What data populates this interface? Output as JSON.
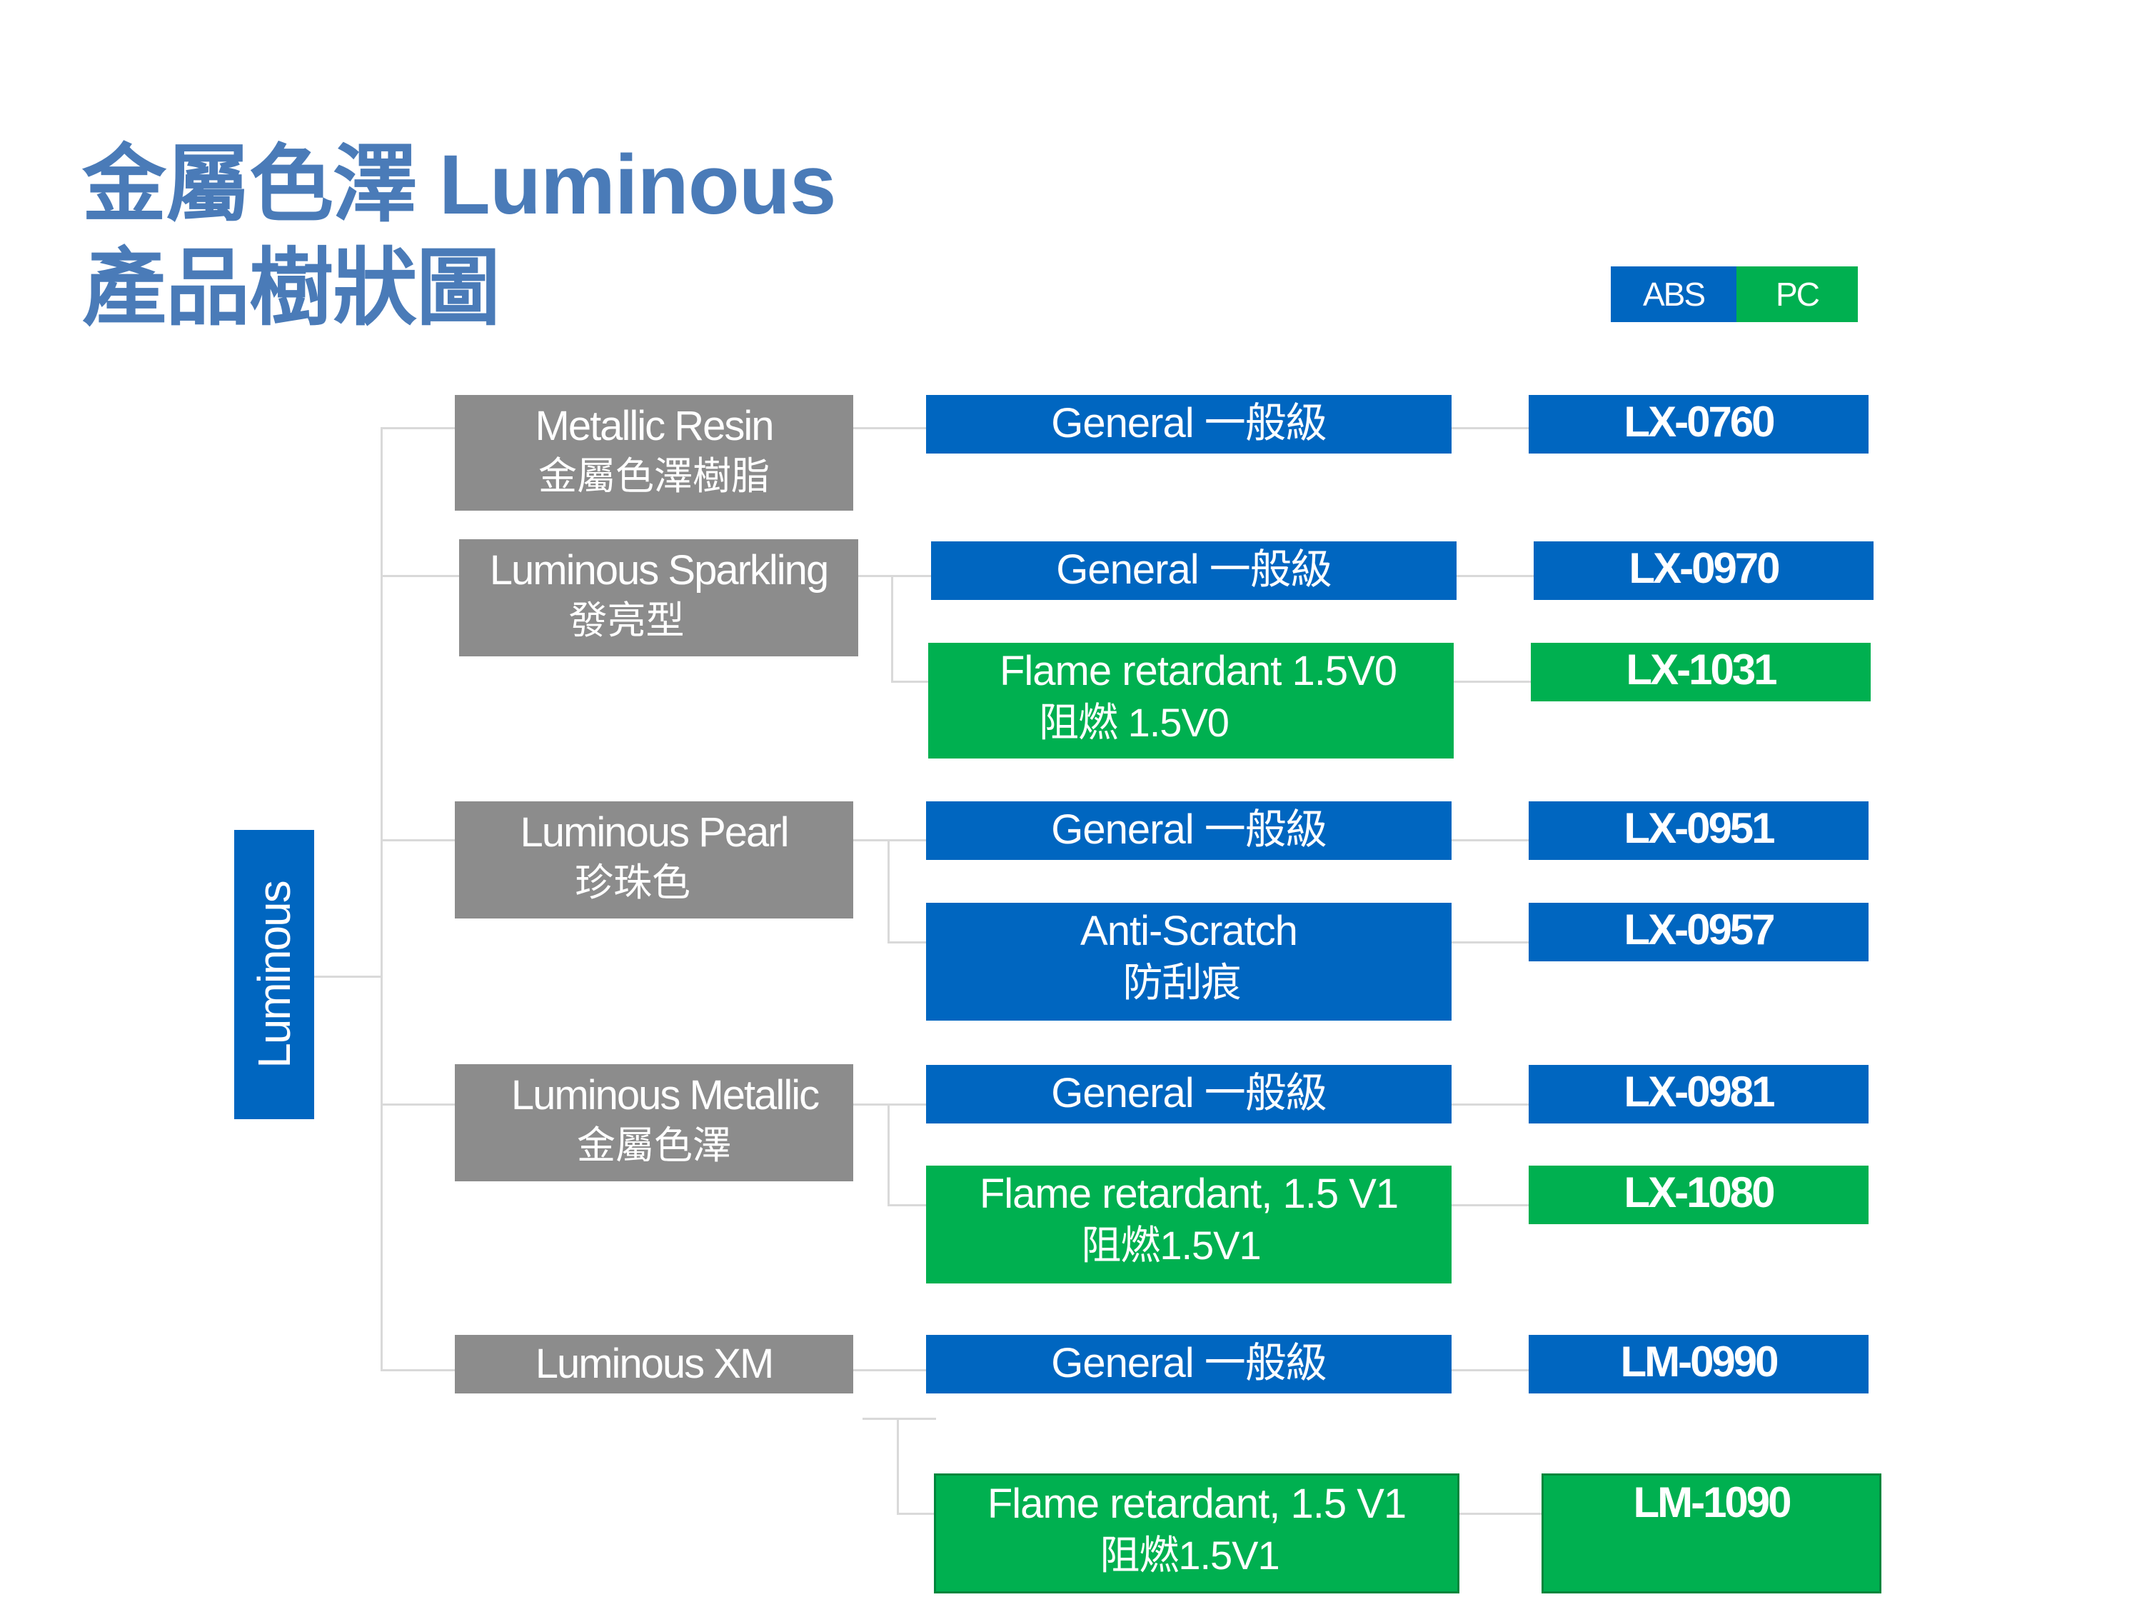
{
  "title": {
    "line1": "金屬色澤 Luminous",
    "line2": "產品樹狀圖"
  },
  "legend": {
    "abs": "ABS",
    "pc": "PC",
    "abs_color": "#0066c0",
    "pc_color": "#00b050"
  },
  "root": "Luminous",
  "categories": [
    {
      "name": "Metallic Resin",
      "sub": "金屬色澤樹脂"
    },
    {
      "name": "Luminous Sparkling",
      "sub": "發亮型"
    },
    {
      "name": "Luminous Pearl",
      "sub": "珍珠色"
    },
    {
      "name": "Luminous  Metallic",
      "sub": "金屬色澤"
    },
    {
      "name": "Luminous XM",
      "sub": ""
    }
  ],
  "grades": [
    {
      "label": "General 一般級",
      "sub": "",
      "material": "ABS",
      "code": "LX-0760"
    },
    {
      "label": "General 一般級",
      "sub": "",
      "material": "ABS",
      "code": "LX-0970"
    },
    {
      "label": "Flame  retardant 1.5V0",
      "sub": "阻燃 1.5V0",
      "material": "PC",
      "code": "LX-1031"
    },
    {
      "label": "General 一般級",
      "sub": "",
      "material": "ABS",
      "code": "LX-0951"
    },
    {
      "label": "Anti-Scratch",
      "sub": "防刮痕",
      "material": "ABS",
      "code": "LX-0957"
    },
    {
      "label": "General 一般級",
      "sub": "",
      "material": "ABS",
      "code": "LX-0981"
    },
    {
      "label": "Flame retardant, 1.5 V1",
      "sub": "阻燃1.5V1",
      "material": "PC",
      "code": "LX-1080"
    },
    {
      "label": "General 一般級",
      "sub": "",
      "material": "ABS",
      "code": "LM-0990"
    },
    {
      "label": "Flame retardant, 1.5 V1",
      "sub": "阻燃1.5V1",
      "material": "PC",
      "code": "LM-1090"
    }
  ]
}
